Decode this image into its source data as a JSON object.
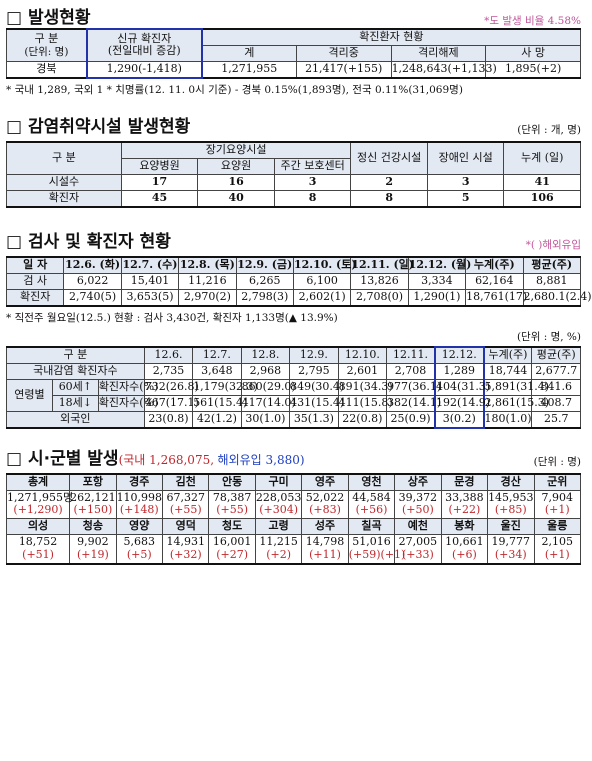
{
  "s1": {
    "title": "□ 발생현황",
    "ratio": "*도 발생 비율 4.58%",
    "head": {
      "category": "구 분",
      "unit": "(단위: 명)",
      "new": "신규 확진자",
      "new_sub": "(전일대비 증감)",
      "status": "확진환자 현황",
      "cols": [
        "계",
        "격리중",
        "격리해제",
        "사 망"
      ]
    },
    "row": [
      "경북",
      "1,290(-1,418)",
      "1,271,955",
      "21,417(+155)",
      "1,248,643(+1,133)",
      "1,895(+2)"
    ],
    "note": "* 국내 1,289, 국외 1  * 치명률(12. 11. 0시 기준) - 경북 0.15%(1,893명), 전국 0.11%(31,069명)"
  },
  "s2": {
    "title": "□ 감염취약시설 발생현황",
    "unit": "(단위 : 개, 명)",
    "head": {
      "category": "구 분",
      "long_term": "장기요양시설",
      "long_term_cols": [
        "요양병원",
        "요양원",
        "주간 보호센터"
      ],
      "mental": "정신 건강시설",
      "disabled": "장애인 시설",
      "total": "누계 (일)"
    },
    "rows": [
      [
        "시설수",
        "17",
        "16",
        "3",
        "2",
        "3",
        "41"
      ],
      [
        "확진자",
        "45",
        "40",
        "8",
        "8",
        "5",
        "106"
      ]
    ]
  },
  "s3": {
    "title": "□ 검사 및 확진자 현황",
    "note": "*( )해외유입",
    "t1": {
      "head": [
        "일 자",
        "12.6. (화)",
        "12.7. (수)",
        "12.8. (목)",
        "12.9. (금)",
        "12.10. (토)",
        "12.11. (일)",
        "12.12. (월)",
        "누계(주)",
        "평균(주)"
      ],
      "rows": [
        [
          "검 사",
          "6,022",
          "15,401",
          "11,216",
          "6,265",
          "6,100",
          "13,826",
          "3,334",
          "62,164",
          "8,881"
        ],
        [
          "확진자",
          "2,740(5)",
          "3,653(5)",
          "2,970(2)",
          "2,798(3)",
          "2,602(1)",
          "2,708(0)",
          "1,290(1)",
          "18,761(17)",
          "2,680.1(2.4)"
        ]
      ]
    },
    "prev": "* 직전주 월요일(12.5.) 현황 : 검사 3,430건, 확진자 1,133명(▲ 13.9%)",
    "unit": "(단위 : 명, %)",
    "t2": {
      "head": [
        "구 분",
        "12.6.",
        "12.7.",
        "12.8.",
        "12.9.",
        "12.10.",
        "12.11.",
        "12.12.",
        "누계(주)",
        "평균(주)"
      ],
      "age_label": "연령별",
      "domestic": {
        "label": "국내감염 확진자수",
        "values": [
          "2,735",
          "3,648",
          "2,968",
          "2,795",
          "2,601",
          "2,708",
          "1,289",
          "18,744",
          "2,677.7"
        ]
      },
      "ages": [
        {
          "group": "60세↑",
          "label": "확진자수(%)",
          "values": [
            "732(26.8)",
            "1,179(32.3)",
            "860(29.0)",
            "849(30.4)",
            "891(34.3)",
            "977(36.1)",
            "404(31.3)",
            "5,891(31.4)",
            "841.6"
          ]
        },
        {
          "group": "18세↓",
          "label": "확진자수(%)",
          "values": [
            "467(17.1)",
            "561(15.4)",
            "417(14.0)",
            "431(15.4)",
            "411(15.8)",
            "382(14.1)",
            "192(14.9)",
            "2,861(15.3)",
            "408.7"
          ]
        }
      ],
      "foreign": {
        "label": "외국인",
        "values": [
          "23(0.8)",
          "42(1.2)",
          "30(1.0)",
          "35(1.3)",
          "22(0.8)",
          "25(0.9)",
          "3(0.2)",
          "180(1.0)",
          "25.7"
        ]
      }
    }
  },
  "s4": {
    "title": "□ 시·군별 발생",
    "domestic": "(국내 1,268,075,",
    "overseas": "해외유입 3,880)",
    "unit": "(단위 : 명)",
    "rows": [
      {
        "names": [
          "총계",
          "포항",
          "경주",
          "김천",
          "안동",
          "구미",
          "영주",
          "영천",
          "상주",
          "문경",
          "경산",
          "군위"
        ],
        "totals": [
          "1,271,955명",
          "262,121",
          "110,998",
          "67,327",
          "78,387",
          "228,053",
          "52,022",
          "44,584",
          "39,372",
          "33,388",
          "145,953",
          "7,904"
        ],
        "changes": [
          "(+1,290)",
          "(+150)",
          "(+148)",
          "(+55)",
          "(+55)",
          "(+304)",
          "(+83)",
          "(+56)",
          "(+50)",
          "(+22)",
          "(+85)",
          "(+1)"
        ]
      },
      {
        "names": [
          "의성",
          "청송",
          "영양",
          "영덕",
          "청도",
          "고령",
          "성주",
          "칠곡",
          "예천",
          "봉화",
          "울진",
          "울릉"
        ],
        "totals": [
          "18,752",
          "9,902",
          "5,683",
          "14,931",
          "16,001",
          "11,215",
          "14,798",
          "51,016",
          "27,005",
          "10,661",
          "19,777",
          "2,105"
        ],
        "changes": [
          "(+51)",
          "(+19)",
          "(+5)",
          "(+32)",
          "(+27)",
          "(+2)",
          "(+11)",
          "(+59)(+1)",
          "(+33)",
          "(+6)",
          "(+34)",
          "(+1)"
        ]
      }
    ]
  }
}
